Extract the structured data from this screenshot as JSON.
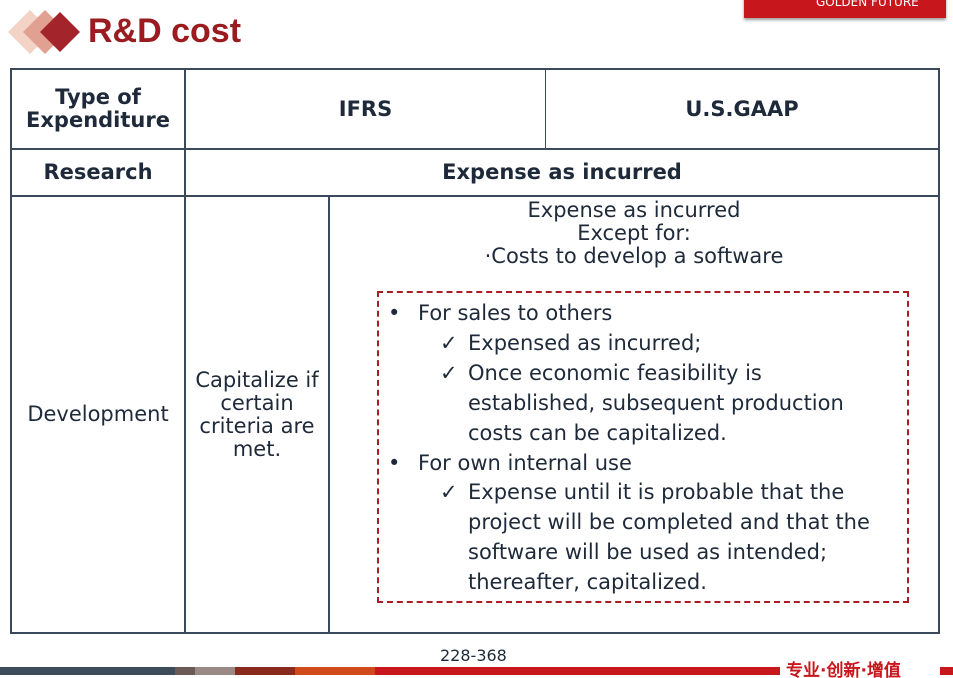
{
  "header": {
    "title": "R&D cost",
    "logo": "GOLDEN FUTURE"
  },
  "table": {
    "headers": [
      "Type of Expenditure",
      "IFRS",
      "U.S.GAAP"
    ],
    "research": {
      "label": "Research",
      "both": "Expense as incurred"
    },
    "development": {
      "label": "Development",
      "ifrs": "Capitalize if certain criteria are met.",
      "gaap": {
        "intro": [
          "Expense as incurred",
          "Except for:",
          "·Costs to develop a software"
        ],
        "items": [
          {
            "heading": "For sales to others",
            "points": [
              "Expensed as incurred;",
              "Once economic feasibility is established, subsequent production costs can be capitalized."
            ]
          },
          {
            "heading": "For own internal use",
            "points": [
              "Expense until it is probable that the project will be completed and that the software will be used as intended; thereafter, capitalized."
            ]
          }
        ]
      }
    }
  },
  "footer": {
    "page": "228-368",
    "slogan": "专业·创新·增值"
  }
}
